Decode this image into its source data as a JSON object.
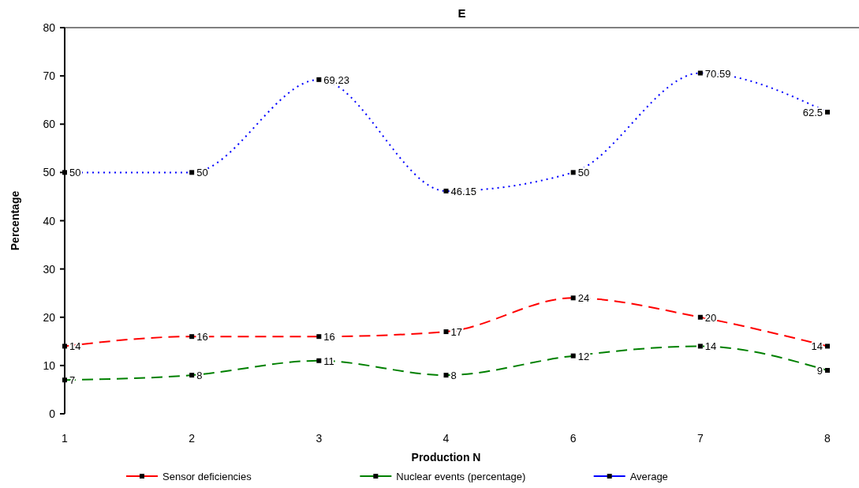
{
  "chart_data": {
    "type": "line",
    "title": "E",
    "xlabel": "Production N",
    "ylabel": "Percentage",
    "categories": [
      "1",
      "2",
      "3",
      "4",
      "6",
      "7",
      "8"
    ],
    "series": [
      {
        "name": "Sensor deficiencies",
        "color": "#ff0000",
        "line_style": "dashed",
        "values": [
          14,
          16,
          16,
          17,
          24,
          20,
          14
        ]
      },
      {
        "name": "Nuclear events (percentage)",
        "color": "#008000",
        "line_style": "dashed",
        "values": [
          7,
          8,
          11,
          8,
          12,
          14,
          9
        ]
      },
      {
        "name": "Average",
        "color": "#0000ff",
        "line_style": "dotted",
        "values": [
          50,
          50,
          69.23,
          46.15,
          50,
          70.59,
          62.5
        ]
      }
    ],
    "ylim": [
      0,
      80
    ],
    "yticks": [
      0,
      10,
      20,
      30,
      40,
      50,
      60,
      70,
      80
    ],
    "grid": false,
    "legend": "bottom",
    "marker": "square",
    "data_labels": true
  }
}
